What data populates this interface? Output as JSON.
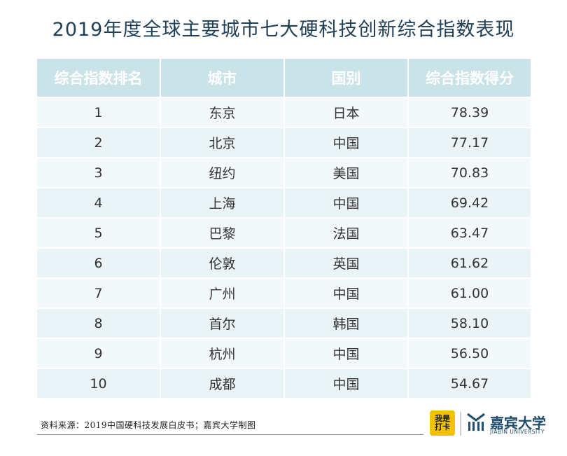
{
  "title": "2019年度全球主要城市七大硬科技创新综合指数表现",
  "chart_data": {
    "type": "table",
    "columns": [
      "综合指数排名",
      "城市",
      "国别",
      "综合指数得分"
    ],
    "rows": [
      [
        "1",
        "东京",
        "日本",
        "78.39"
      ],
      [
        "2",
        "北京",
        "中国",
        "77.17"
      ],
      [
        "3",
        "纽约",
        "美国",
        "70.83"
      ],
      [
        "4",
        "上海",
        "中国",
        "69.42"
      ],
      [
        "5",
        "巴黎",
        "法国",
        "63.47"
      ],
      [
        "6",
        "伦敦",
        "英国",
        "61.62"
      ],
      [
        "7",
        "广州",
        "中国",
        "61.00"
      ],
      [
        "8",
        "首尔",
        "韩国",
        "58.10"
      ],
      [
        "9",
        "杭州",
        "中国",
        "56.50"
      ],
      [
        "10",
        "成都",
        "中国",
        "54.67"
      ]
    ]
  },
  "footer": {
    "source": "资料来源：2019中国硬科技发展白皮书；嘉宾大学制图",
    "badge_text": "我是\n打卡",
    "brand_cn": "嘉宾大学",
    "brand_en": "JIABIN UNIVERSITY"
  },
  "colors": {
    "header_bg": "#c9e3e8",
    "row_bg": "#f3f9fb",
    "title": "#1f3f56",
    "brand": "#1f4d6b",
    "badge": "#f2c200"
  }
}
